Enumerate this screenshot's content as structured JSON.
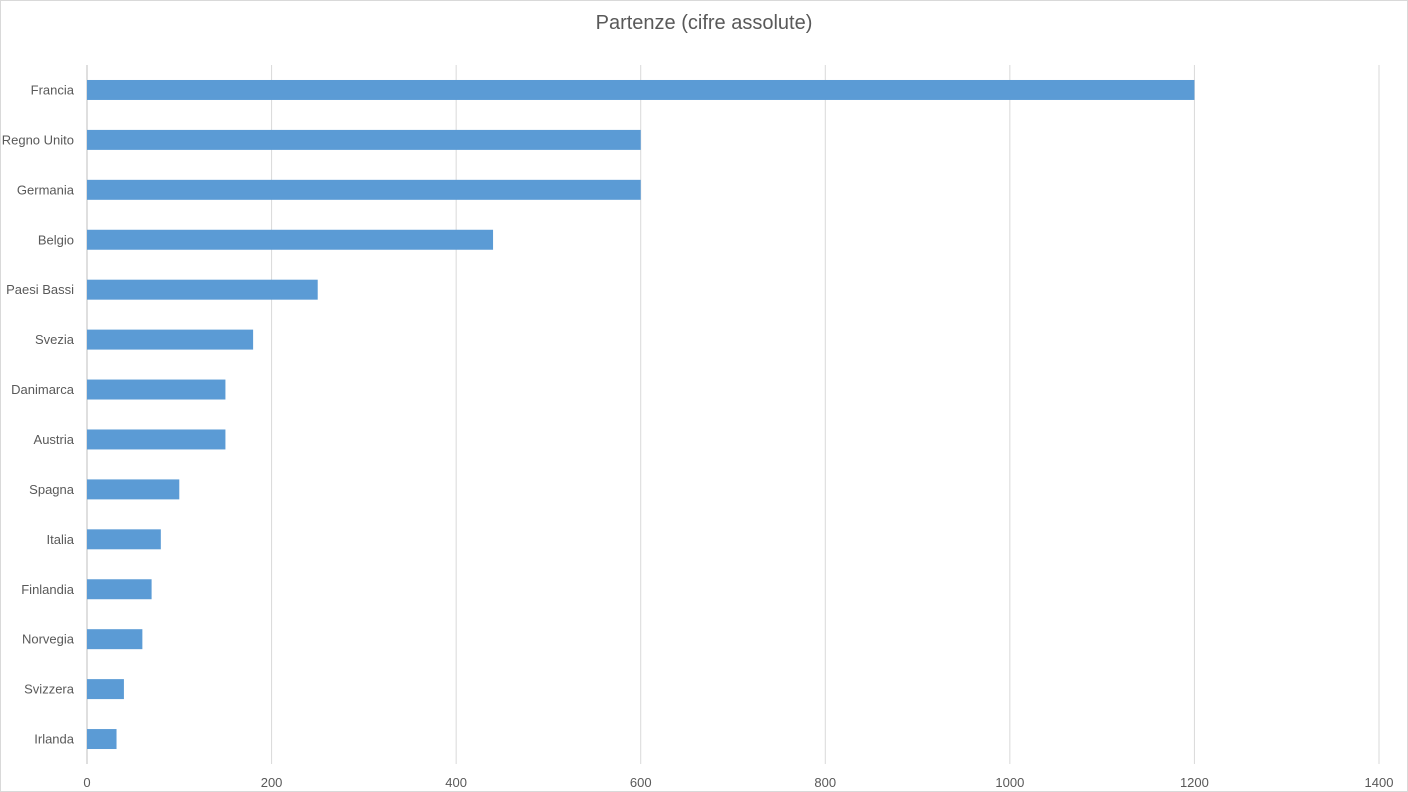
{
  "chart_data": {
    "type": "bar",
    "orientation": "horizontal",
    "title": "Partenze (cifre assolute)",
    "xlabel": "",
    "ylabel": "",
    "xlim": [
      0,
      1400
    ],
    "x_ticks": [
      0,
      200,
      400,
      600,
      800,
      1000,
      1200,
      1400
    ],
    "grid": true,
    "legend": "none",
    "bar_color": "#5b9bd5",
    "categories": [
      "Francia",
      "Regno Unito",
      "Germania",
      "Belgio",
      "Paesi Bassi",
      "Svezia",
      "Danimarca",
      "Austria",
      "Spagna",
      "Italia",
      "Finlandia",
      "Norvegia",
      "Svizzera",
      "Irlanda"
    ],
    "values": [
      1200,
      600,
      600,
      440,
      250,
      180,
      150,
      150,
      100,
      80,
      70,
      60,
      40,
      32
    ]
  }
}
